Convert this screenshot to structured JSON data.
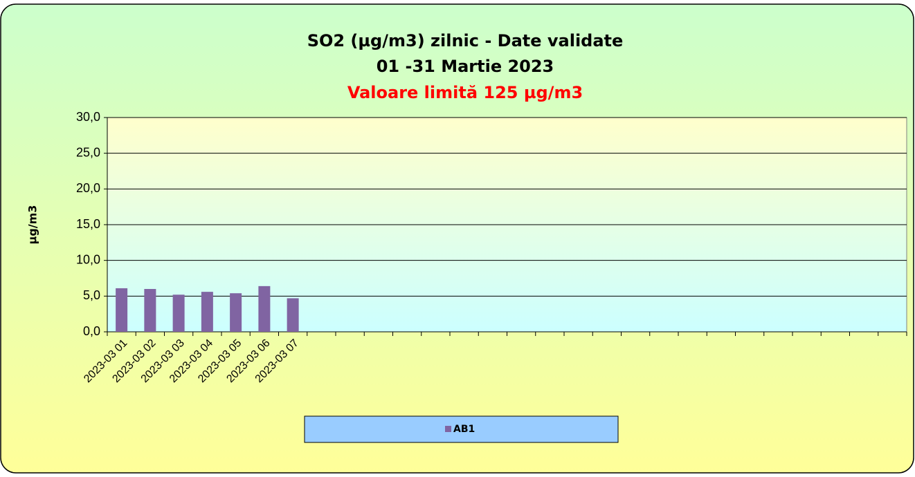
{
  "chart_data": {
    "type": "bar",
    "title": "SO2 (µg/m3) zilnic - Date validate",
    "subtitle": "01 -31  Martie 2023",
    "annotation": "Valoare limită 125 µg/m3",
    "ylabel": "µg/m3",
    "categories": [
      "2023-03 01",
      "2023-03 02",
      "2023-03 03",
      "2023-03 04",
      "2023-03 05",
      "2023-03 06",
      "2023-03 07",
      null,
      null,
      null,
      null,
      null,
      null,
      null,
      null,
      null,
      null,
      null,
      null,
      null,
      null,
      null,
      null,
      null,
      null,
      null,
      null,
      null
    ],
    "series": [
      {
        "name": "AB1",
        "color": "#8064a2",
        "values": [
          6.1,
          6.0,
          5.2,
          5.6,
          5.4,
          6.4,
          4.7,
          null,
          null,
          null,
          null,
          null,
          null,
          null,
          null,
          null,
          null,
          null,
          null,
          null,
          null,
          null,
          null,
          null,
          null,
          null,
          null,
          null
        ]
      }
    ],
    "ylim": [
      0,
      30
    ],
    "yticks": [
      {
        "value": 0,
        "label": "0,0"
      },
      {
        "value": 5,
        "label": "5,0"
      },
      {
        "value": 10,
        "label": "10,0"
      },
      {
        "value": 15,
        "label": "15,0"
      },
      {
        "value": 20,
        "label": "20,0"
      },
      {
        "value": 25,
        "label": "25,0"
      },
      {
        "value": 30,
        "label": "30,0"
      }
    ],
    "grid": true,
    "legend": "bottom"
  }
}
